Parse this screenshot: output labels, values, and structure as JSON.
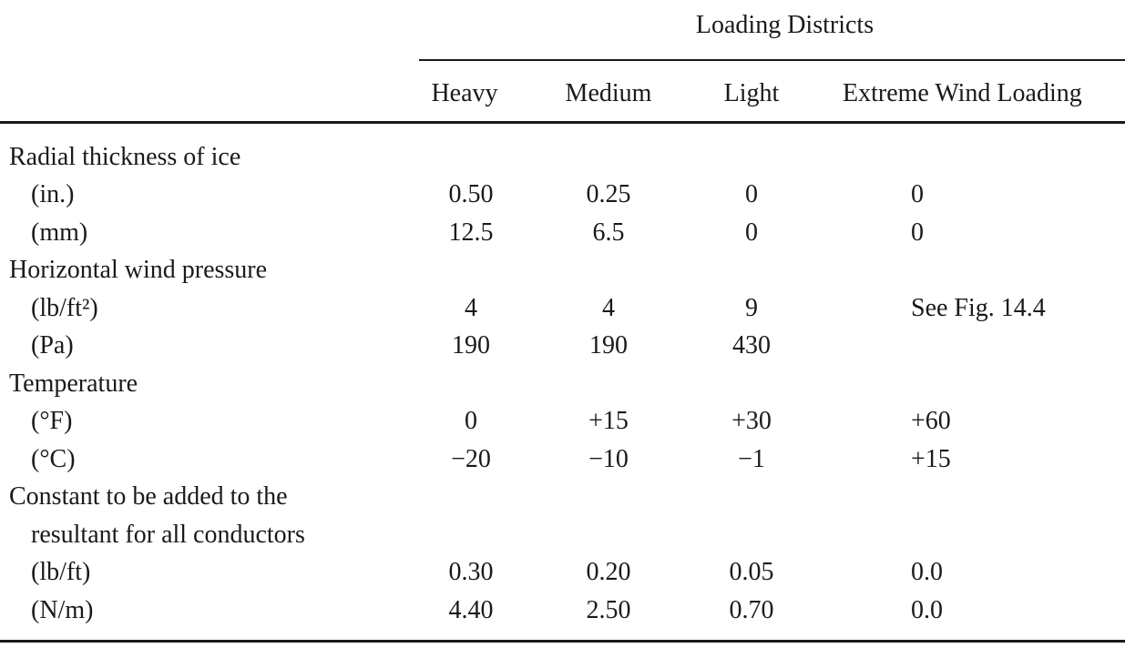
{
  "group_title": "Loading Districts",
  "columns": [
    "",
    "Heavy",
    "Medium",
    "Light",
    "Extreme Wind Loading"
  ],
  "rows": [
    {
      "label": "Radial thickness of ice",
      "indent": false,
      "values": [
        "",
        "",
        "",
        ""
      ]
    },
    {
      "label": "(in.)",
      "indent": true,
      "values": [
        "0.50",
        "0.25",
        "0",
        "0"
      ]
    },
    {
      "label": "(mm)",
      "indent": true,
      "values": [
        "12.5",
        "6.5",
        "0",
        "0"
      ]
    },
    {
      "label": "Horizontal wind pressure",
      "indent": false,
      "values": [
        "",
        "",
        "",
        ""
      ]
    },
    {
      "label": "(lb/ft²)",
      "indent": true,
      "values": [
        "4",
        "4",
        "9",
        "See Fig. 14.4"
      ]
    },
    {
      "label": "(Pa)",
      "indent": true,
      "values": [
        "190",
        "190",
        "430",
        ""
      ]
    },
    {
      "label": "Temperature",
      "indent": false,
      "values": [
        "",
        "",
        "",
        ""
      ]
    },
    {
      "label": "(°F)",
      "indent": true,
      "values": [
        "0",
        "+15",
        "+30",
        "+60"
      ]
    },
    {
      "label": "(°C)",
      "indent": true,
      "values": [
        "−20",
        "−10",
        "−1",
        "+15"
      ]
    },
    {
      "label": "Constant to be added to the",
      "indent": false,
      "values": [
        "",
        "",
        "",
        ""
      ]
    },
    {
      "label": "resultant for all conductors",
      "indent": true,
      "values": [
        "",
        "",
        "",
        ""
      ]
    },
    {
      "label": "(lb/ft)",
      "indent": true,
      "values": [
        "0.30",
        "0.20",
        "0.05",
        "0.0"
      ]
    },
    {
      "label": "(N/m)",
      "indent": true,
      "values": [
        "4.40",
        "2.50",
        "0.70",
        "0.0"
      ]
    }
  ]
}
